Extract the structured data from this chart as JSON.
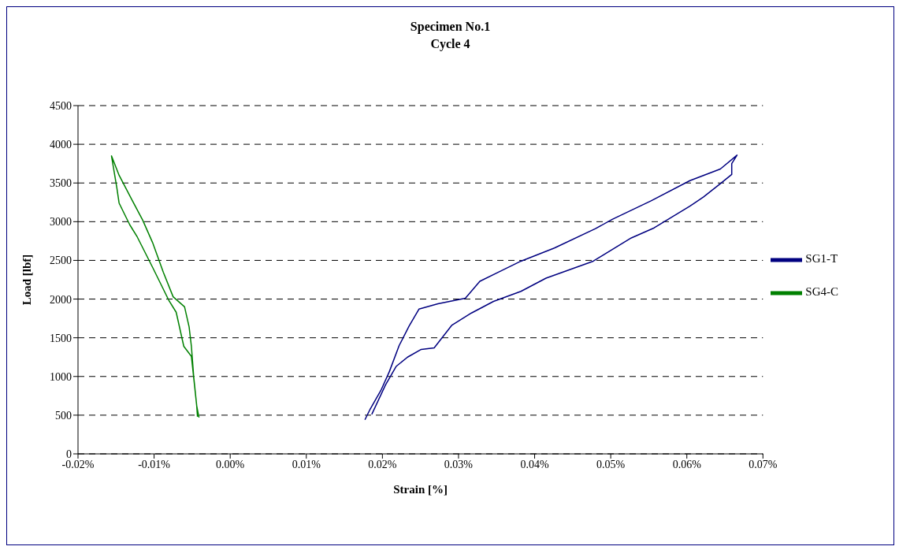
{
  "chart_data": {
    "type": "line",
    "title": "Specimen No.1\nCycle 4",
    "xlabel": "Strain [%]",
    "ylabel": "Load [lbf]",
    "xlim": [
      -0.02,
      0.07
    ],
    "xticks": [
      {
        "value": -0.02,
        "label": "-0.02%"
      },
      {
        "value": -0.01,
        "label": "-0.01%"
      },
      {
        "value": 0,
        "label": "0.00%"
      },
      {
        "value": 0.01,
        "label": "0.01%"
      },
      {
        "value": 0.02,
        "label": "0.02%"
      },
      {
        "value": 0.03,
        "label": "0.03%"
      },
      {
        "value": 0.04,
        "label": "0.04%"
      },
      {
        "value": 0.05,
        "label": "0.05%"
      },
      {
        "value": 0.06,
        "label": "0.06%"
      },
      {
        "value": 0.07,
        "label": "0.07%"
      }
    ],
    "ylim": [
      0,
      4500
    ],
    "yticks": [
      0,
      500,
      1000,
      1500,
      2000,
      2500,
      3000,
      3500,
      4000,
      4500
    ],
    "grid": "y",
    "legend": "right",
    "marker": "none",
    "line_style": "solid",
    "series": [
      {
        "name": "SG1-T",
        "color": "#000080",
        "x": [
          0.0177,
          0.0184,
          0.0198,
          0.0209,
          0.0222,
          0.0235,
          0.0248,
          0.0273,
          0.0309,
          0.0328,
          0.0353,
          0.0382,
          0.0426,
          0.048,
          0.0502,
          0.0553,
          0.0604,
          0.0644,
          0.0666,
          0.0659,
          0.0659,
          0.0644,
          0.0622,
          0.0604,
          0.0557,
          0.0527,
          0.0477,
          0.0415,
          0.0382,
          0.0346,
          0.0317,
          0.0291,
          0.0268,
          0.0251,
          0.0233,
          0.0218,
          0.0204,
          0.0186
        ],
        "values": [
          440,
          580,
          820,
          1060,
          1400,
          1650,
          1870,
          1940,
          2010,
          2230,
          2350,
          2490,
          2660,
          2910,
          3030,
          3270,
          3530,
          3680,
          3860,
          3750,
          3610,
          3490,
          3320,
          3200,
          2920,
          2790,
          2490,
          2270,
          2100,
          1970,
          1820,
          1660,
          1370,
          1350,
          1250,
          1130,
          890,
          510
        ]
      },
      {
        "name": "SG4-C",
        "color": "#008000",
        "x": [
          -0.0041,
          -0.0044,
          -0.0048,
          -0.0051,
          -0.0054,
          -0.006,
          -0.0075,
          -0.0088,
          -0.0102,
          -0.0115,
          -0.0129,
          -0.0146,
          -0.0156,
          -0.0149,
          -0.0146,
          -0.0132,
          -0.0122,
          -0.0102,
          -0.0081,
          -0.0071,
          -0.0061,
          -0.0051,
          -0.0044,
          -0.0043
        ],
        "values": [
          470,
          620,
          1000,
          1390,
          1640,
          1900,
          2030,
          2350,
          2730,
          3020,
          3280,
          3600,
          3850,
          3440,
          3240,
          2960,
          2800,
          2410,
          1990,
          1830,
          1390,
          1260,
          620,
          480
        ]
      }
    ]
  }
}
